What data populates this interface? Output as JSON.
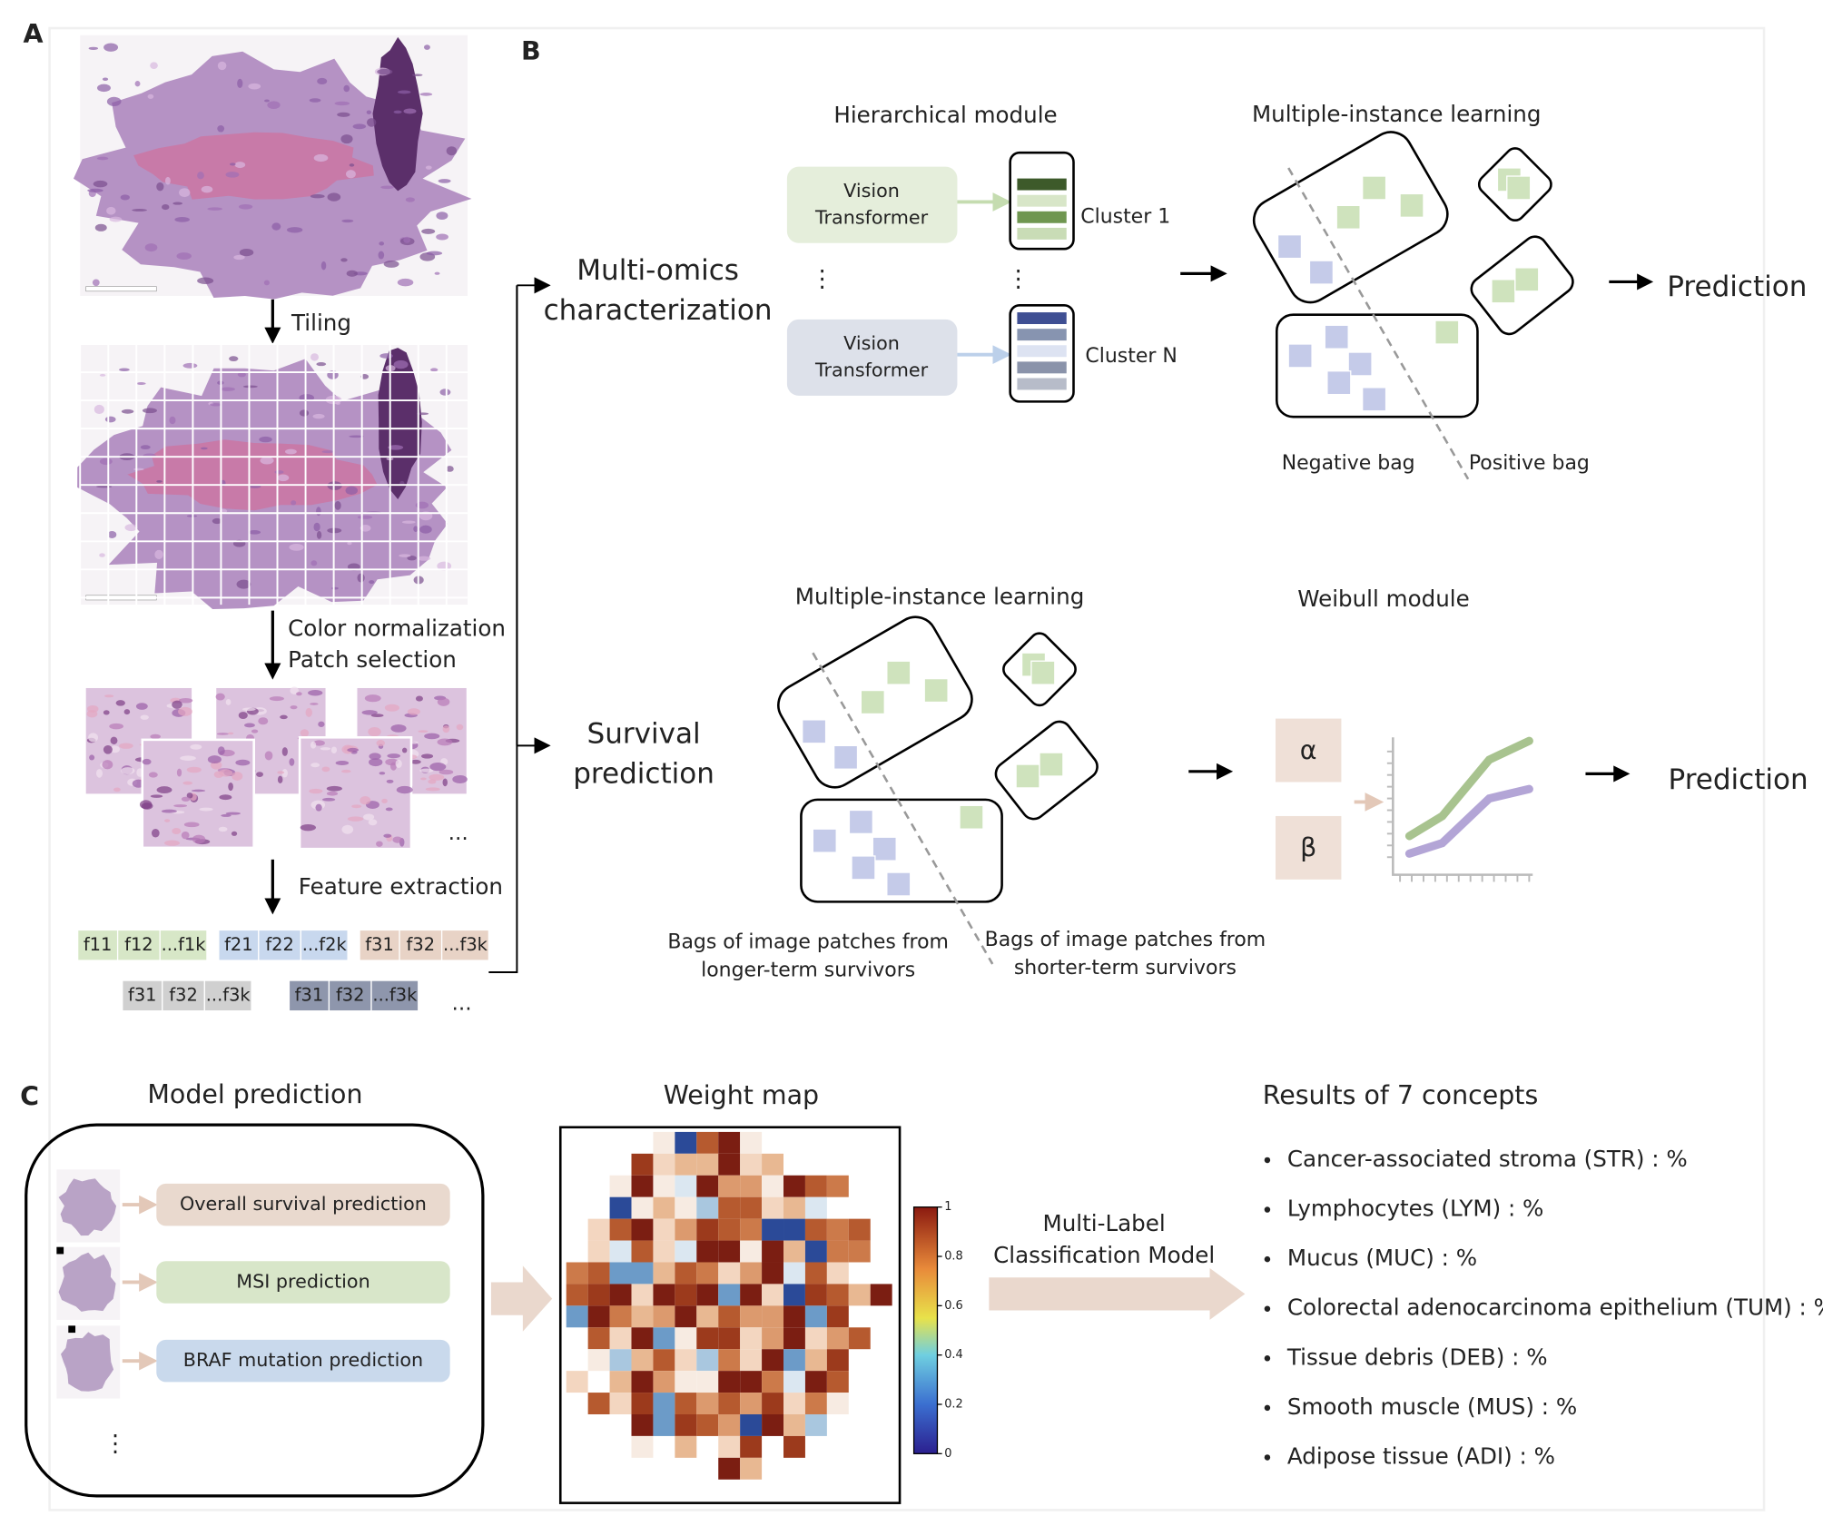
{
  "panel_a": {
    "label": "A",
    "tiling": "Tiling",
    "color_normalization": "Color normalization",
    "patch_selection": "Patch selection",
    "patch_ellipsis": "...",
    "feature_extraction": "Feature extraction",
    "feature_groups": [
      [
        "f11",
        "f12",
        "...f1k"
      ],
      [
        "f21",
        "f22",
        "...f2k"
      ],
      [
        "f31",
        "f32",
        "...f3k"
      ],
      [
        "f31",
        "f32",
        "...f3k"
      ],
      [
        "f31",
        "f32",
        "...f3k"
      ]
    ],
    "feature_ellipsis": "..."
  },
  "panel_b": {
    "label": "B",
    "multi_omics": [
      "Multi-omics",
      "characterization"
    ],
    "hierarchical_module": "Hierarchical module",
    "vision_transformer": [
      [
        "Vision",
        "Transformer"
      ],
      [
        "Vision",
        "Transformer"
      ]
    ],
    "clusters": [
      "Cluster 1",
      "Cluster N"
    ],
    "vertical_ellipsis": [
      "⋮",
      "⋮"
    ],
    "mil_top": "Multiple-instance learning",
    "negative_bag": "Negative bag",
    "positive_bag": "Positive bag",
    "prediction_top": "Prediction",
    "survival": [
      "Survival",
      "prediction"
    ],
    "mil_bottom": "Multiple-instance learning",
    "weibull_module": "Weibull module",
    "alpha": "α",
    "beta": "β",
    "longer_term": [
      "Bags of image patches from",
      "longer-term survivors"
    ],
    "shorter_term": [
      "Bags of image patches from",
      "shorter-term survivors"
    ],
    "prediction_bottom": "Prediction"
  },
  "panel_c": {
    "label": "C",
    "model_prediction": "Model prediction",
    "tasks": [
      "Overall survival prediction",
      "MSI prediction",
      "BRAF mutation prediction"
    ],
    "ellipsis": "⋮",
    "weight_map": "Weight map",
    "colorbar_ticks": [
      0,
      0.2,
      0.4,
      0.6,
      0.8,
      1
    ],
    "classifier": [
      "Multi-Label",
      "Classification Model"
    ],
    "results_title": "Results of 7 concepts",
    "concepts": [
      "Cancer-associated stroma (STR) : %",
      "Lymphocytes (LYM) : %",
      "Mucus (MUC) : %",
      "Colorectal adenocarcinoma epithelium (TUM) : %",
      "Tissue debris (DEB) : %",
      "Smooth muscle (MUS) : %",
      "Adipose tissue (ADI) : %"
    ]
  }
}
